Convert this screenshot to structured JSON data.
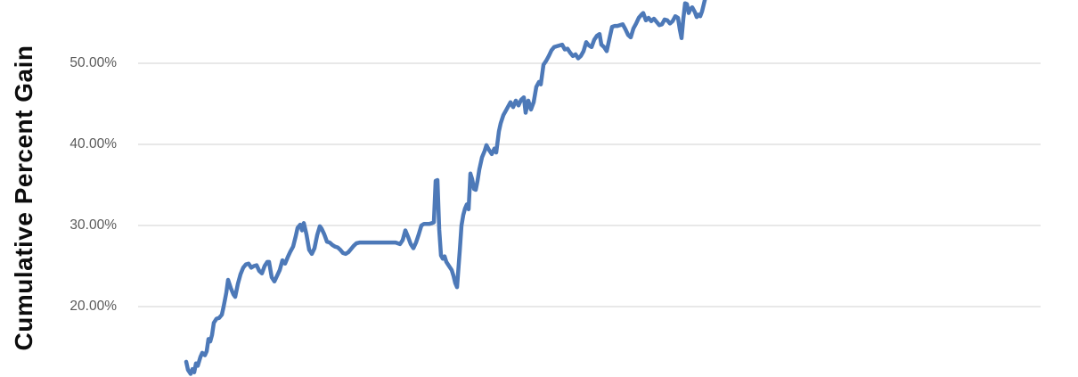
{
  "chart_data": {
    "type": "line",
    "title": "",
    "xlabel": "",
    "ylabel": "Cumulative Percent Gain",
    "x_axis": {
      "visible": false,
      "x_unit": "px"
    },
    "y_axis": {
      "unit": "percent",
      "ticks": [
        {
          "label": "20.00%",
          "value": 20
        },
        {
          "label": "30.00%",
          "value": 30
        },
        {
          "label": "40.00%",
          "value": 40
        },
        {
          "label": "50.00%",
          "value": 50
        }
      ],
      "visible_value_range": [
        11.3,
        57.8
      ]
    },
    "grid": {
      "horizontal": true,
      "vertical": false,
      "color": "#d9d9d9"
    },
    "legend": {
      "visible": false
    },
    "series": [
      {
        "name": "Cumulative Percent Gain",
        "color": "#4d79b8",
        "stroke_width": 4.5,
        "points": [
          [
            209,
            13.2
          ],
          [
            211,
            12.2
          ],
          [
            214,
            11.7
          ],
          [
            216,
            12.3
          ],
          [
            218,
            11.9
          ],
          [
            220,
            13.0
          ],
          [
            222,
            12.7
          ],
          [
            225,
            13.8
          ],
          [
            227,
            14.3
          ],
          [
            230,
            14.0
          ],
          [
            232,
            14.5
          ],
          [
            234,
            16.0
          ],
          [
            236,
            15.7
          ],
          [
            238,
            16.5
          ],
          [
            240,
            18.0
          ],
          [
            243,
            18.5
          ],
          [
            246,
            18.6
          ],
          [
            249,
            19.0
          ],
          [
            251,
            20.0
          ],
          [
            254,
            21.7
          ],
          [
            256,
            23.3
          ],
          [
            259,
            22.3
          ],
          [
            262,
            21.5
          ],
          [
            264,
            21.2
          ],
          [
            267,
            22.8
          ],
          [
            270,
            24.0
          ],
          [
            273,
            24.8
          ],
          [
            276,
            25.2
          ],
          [
            279,
            25.3
          ],
          [
            282,
            24.8
          ],
          [
            285,
            25.0
          ],
          [
            288,
            25.1
          ],
          [
            291,
            24.4
          ],
          [
            294,
            24.1
          ],
          [
            297,
            25.0
          ],
          [
            300,
            25.5
          ],
          [
            302,
            25.5
          ],
          [
            305,
            23.6
          ],
          [
            308,
            23.1
          ],
          [
            311,
            23.8
          ],
          [
            314,
            24.5
          ],
          [
            317,
            25.7
          ],
          [
            320,
            25.3
          ],
          [
            323,
            26.1
          ],
          [
            326,
            26.8
          ],
          [
            329,
            27.4
          ],
          [
            332,
            28.7
          ],
          [
            334,
            29.7
          ],
          [
            337,
            30.1
          ],
          [
            339,
            29.4
          ],
          [
            341,
            30.3
          ],
          [
            344,
            28.9
          ],
          [
            347,
            27.0
          ],
          [
            350,
            26.5
          ],
          [
            353,
            27.2
          ],
          [
            356,
            28.8
          ],
          [
            359,
            29.9
          ],
          [
            361,
            29.6
          ],
          [
            364,
            28.9
          ],
          [
            367,
            28.0
          ],
          [
            370,
            27.9
          ],
          [
            373,
            27.6
          ],
          [
            376,
            27.4
          ],
          [
            379,
            27.3
          ],
          [
            382,
            27.0
          ],
          [
            385,
            26.6
          ],
          [
            388,
            26.5
          ],
          [
            391,
            26.7
          ],
          [
            394,
            27.1
          ],
          [
            397,
            27.5
          ],
          [
            400,
            27.8
          ],
          [
            404,
            27.9
          ],
          [
            412,
            27.9
          ],
          [
            420,
            27.9
          ],
          [
            428,
            27.9
          ],
          [
            436,
            27.9
          ],
          [
            444,
            27.9
          ],
          [
            449,
            27.7
          ],
          [
            452,
            28.2
          ],
          [
            455,
            29.4
          ],
          [
            458,
            28.6
          ],
          [
            461,
            27.7
          ],
          [
            464,
            27.2
          ],
          [
            467,
            27.9
          ],
          [
            470,
            28.9
          ],
          [
            473,
            30.0
          ],
          [
            476,
            30.2
          ],
          [
            479,
            30.2
          ],
          [
            482,
            30.2
          ],
          [
            485,
            30.3
          ],
          [
            487,
            30.4
          ],
          [
            489,
            35.5
          ],
          [
            491,
            35.6
          ],
          [
            493,
            29.5
          ],
          [
            495,
            26.3
          ],
          [
            497,
            25.9
          ],
          [
            499,
            26.2
          ],
          [
            501,
            25.5
          ],
          [
            504,
            25.0
          ],
          [
            507,
            24.5
          ],
          [
            509,
            23.8
          ],
          [
            511,
            22.9
          ],
          [
            513,
            22.4
          ],
          [
            516,
            26.8
          ],
          [
            518,
            30.0
          ],
          [
            520,
            31.3
          ],
          [
            522,
            32.1
          ],
          [
            524,
            32.6
          ],
          [
            526,
            32.0
          ],
          [
            528,
            36.4
          ],
          [
            530,
            35.7
          ],
          [
            532,
            34.5
          ],
          [
            534,
            34.4
          ],
          [
            536,
            35.5
          ],
          [
            538,
            36.9
          ],
          [
            541,
            38.4
          ],
          [
            544,
            39.2
          ],
          [
            546,
            39.9
          ],
          [
            549,
            39.3
          ],
          [
            552,
            38.8
          ],
          [
            555,
            39.5
          ],
          [
            557,
            39.0
          ],
          [
            560,
            41.6
          ],
          [
            562,
            42.6
          ],
          [
            565,
            43.6
          ],
          [
            568,
            44.2
          ],
          [
            571,
            44.8
          ],
          [
            573,
            45.2
          ],
          [
            576,
            44.6
          ],
          [
            579,
            45.4
          ],
          [
            582,
            44.8
          ],
          [
            585,
            45.5
          ],
          [
            588,
            45.8
          ],
          [
            590,
            43.9
          ],
          [
            593,
            45.4
          ],
          [
            596,
            44.3
          ],
          [
            599,
            45.2
          ],
          [
            602,
            47.1
          ],
          [
            605,
            47.7
          ],
          [
            607,
            47.4
          ],
          [
            610,
            49.8
          ],
          [
            613,
            50.3
          ],
          [
            616,
            50.9
          ],
          [
            619,
            51.6
          ],
          [
            622,
            52.0
          ],
          [
            625,
            52.1
          ],
          [
            628,
            52.2
          ],
          [
            631,
            52.3
          ],
          [
            634,
            51.7
          ],
          [
            637,
            51.8
          ],
          [
            640,
            51.3
          ],
          [
            643,
            50.9
          ],
          [
            646,
            51.1
          ],
          [
            649,
            50.6
          ],
          [
            652,
            50.9
          ],
          [
            655,
            51.5
          ],
          [
            658,
            52.6
          ],
          [
            661,
            52.2
          ],
          [
            664,
            52.0
          ],
          [
            667,
            52.9
          ],
          [
            670,
            53.4
          ],
          [
            673,
            53.6
          ],
          [
            675,
            52.3
          ],
          [
            678,
            52.0
          ],
          [
            681,
            51.5
          ],
          [
            684,
            53.0
          ],
          [
            687,
            54.5
          ],
          [
            690,
            54.6
          ],
          [
            693,
            54.6
          ],
          [
            696,
            54.7
          ],
          [
            699,
            54.8
          ],
          [
            702,
            54.2
          ],
          [
            705,
            53.5
          ],
          [
            708,
            53.2
          ],
          [
            711,
            54.3
          ],
          [
            714,
            54.9
          ],
          [
            717,
            55.6
          ],
          [
            720,
            56.0
          ],
          [
            722,
            56.2
          ],
          [
            725,
            55.3
          ],
          [
            728,
            55.6
          ],
          [
            731,
            55.2
          ],
          [
            734,
            55.5
          ],
          [
            737,
            55.1
          ],
          [
            740,
            54.7
          ],
          [
            743,
            54.8
          ],
          [
            746,
            55.4
          ],
          [
            749,
            55.3
          ],
          [
            752,
            54.9
          ],
          [
            755,
            55.2
          ],
          [
            758,
            55.8
          ],
          [
            761,
            55.6
          ],
          [
            763,
            54.2
          ],
          [
            765,
            53.1
          ],
          [
            767,
            55.5
          ],
          [
            769,
            57.4
          ],
          [
            771,
            57.3
          ],
          [
            773,
            56.2
          ],
          [
            775,
            56.7
          ],
          [
            777,
            56.9
          ],
          [
            780,
            56.3
          ],
          [
            782,
            55.7
          ],
          [
            784,
            56.0
          ],
          [
            786,
            55.8
          ],
          [
            788,
            56.4
          ],
          [
            790,
            57.3
          ],
          [
            792,
            58.2
          ],
          [
            794,
            59.0
          ]
        ]
      }
    ]
  },
  "colors": {
    "background": "#ffffff",
    "gridline": "#d9d9d9",
    "tick_label": "#595959",
    "axis_title": "#0d0d0d",
    "series_line": "#4d79b8"
  }
}
